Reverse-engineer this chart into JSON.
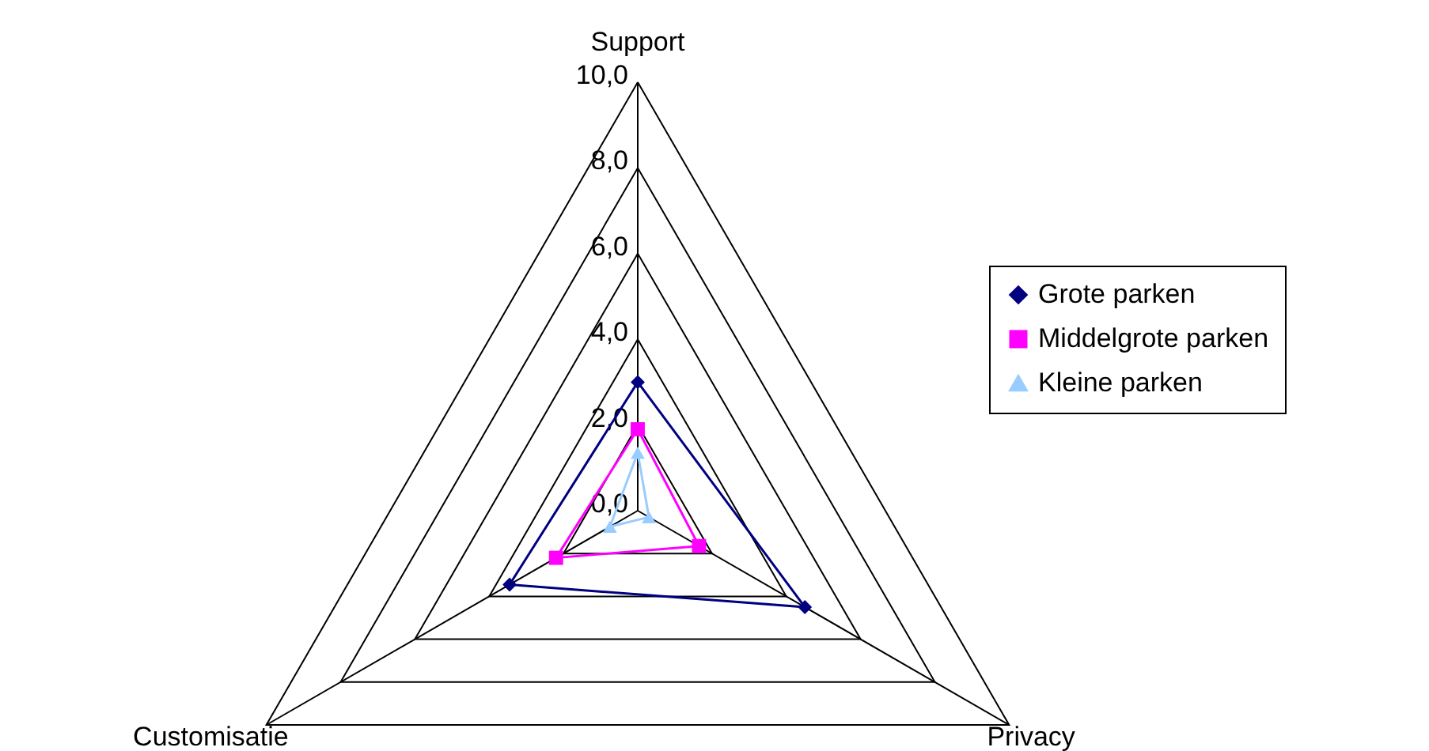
{
  "chart_data": {
    "type": "radar",
    "categories": [
      "Support",
      "Privacy",
      "Customisatie"
    ],
    "series": [
      {
        "name": "Grote parken",
        "color": "#000080",
        "marker": "diamond",
        "values": [
          3.0,
          4.5,
          3.45
        ]
      },
      {
        "name": "Middelgrote parken",
        "color": "#ff00ff",
        "marker": "square",
        "values": [
          1.9,
          1.65,
          2.2
        ]
      },
      {
        "name": "Kleine parken",
        "color": "#99ccff",
        "marker": "triangle",
        "values": [
          1.35,
          0.3,
          0.75
        ]
      }
    ],
    "ylim": [
      0,
      10
    ],
    "yticks": [
      {
        "value": 0,
        "label": "0,0"
      },
      {
        "value": 2,
        "label": "2,0"
      },
      {
        "value": 4,
        "label": "4,0"
      },
      {
        "value": 6,
        "label": "6,0"
      },
      {
        "value": 8,
        "label": "8,0"
      },
      {
        "value": 10,
        "label": "10,0"
      }
    ],
    "grid": true,
    "legend": "right"
  }
}
